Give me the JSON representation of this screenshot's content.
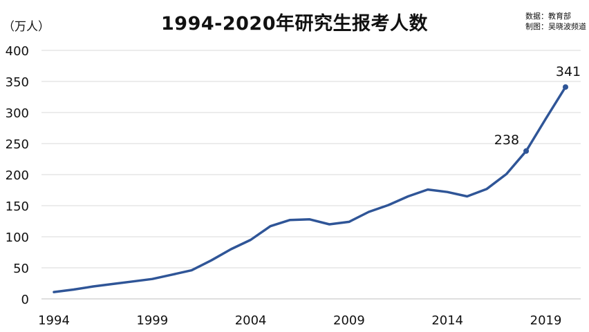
{
  "chart_data": {
    "type": "line",
    "title": "1994-2020年研究生报考人数",
    "unit_label": "（万人）",
    "source_lines": [
      "数据：教育部",
      "制图：吴晓波频道"
    ],
    "x_tick_labels": [
      "1994",
      "1999",
      "2004",
      "2009",
      "2014",
      "2019"
    ],
    "x_ticks": [
      1994,
      1999,
      2004,
      2009,
      2014,
      2019
    ],
    "xlim": [
      1994,
      2020
    ],
    "ylim": [
      0,
      400
    ],
    "y_ticks": [
      0,
      50,
      100,
      150,
      200,
      250,
      300,
      350,
      400
    ],
    "y_tick_labels": [
      "0",
      "50",
      "100",
      "150",
      "200",
      "250",
      "300",
      "350",
      "400"
    ],
    "grid": true,
    "line_color": "#2f5597",
    "series": [
      {
        "x": [
          1994,
          1995,
          1996,
          1997,
          1998,
          1999,
          2000,
          2001,
          2002,
          2003,
          2004,
          2005,
          2006,
          2007,
          2008,
          2009,
          2010,
          2011,
          2012,
          2013,
          2014,
          2015,
          2016,
          2017,
          2018,
          2019,
          2020
        ],
        "values": [
          11,
          15,
          20,
          24,
          28,
          32,
          39,
          46,
          62,
          80,
          95,
          117,
          127,
          128,
          120,
          124,
          140,
          151,
          165,
          176,
          172,
          165,
          177,
          201,
          238,
          290,
          341
        ]
      }
    ],
    "annotations": [
      {
        "x": 2018,
        "y": 238,
        "text": "238"
      },
      {
        "x": 2020,
        "y": 341,
        "text": "341"
      }
    ]
  }
}
